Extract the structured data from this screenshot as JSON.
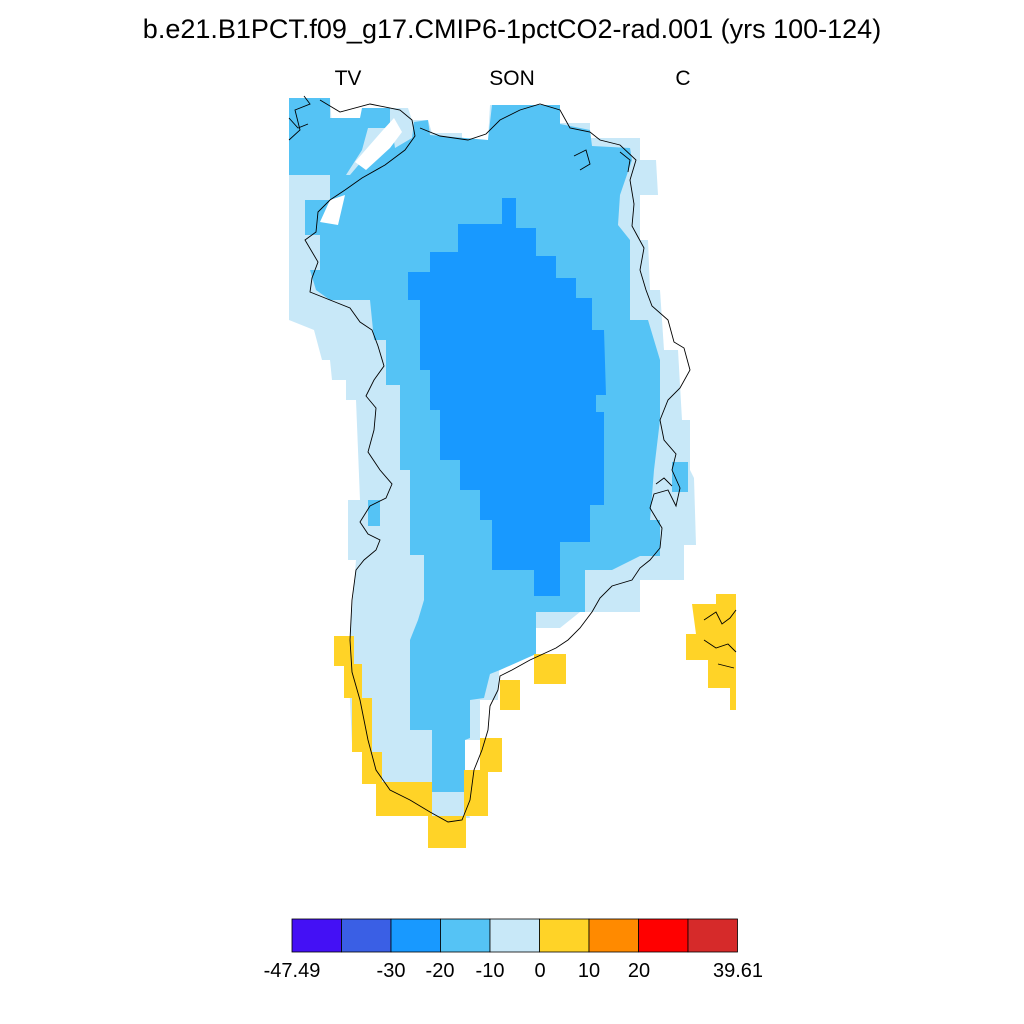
{
  "title": "b.e21.B1PCT.f09_g17.CMIP6-1pctCO2-rad.001 (yrs 100-124)",
  "subtitles": {
    "left": "TV",
    "center": "SON",
    "right": "C"
  },
  "colorbar": {
    "colors": [
      "#4410f5",
      "#3a5fe5",
      "#1899ff",
      "#55c3f5",
      "#c8e8f8",
      "#ffd327",
      "#ff8a00",
      "#ff0000",
      "#d62a2a"
    ],
    "labels": [
      "-47.49",
      "-30",
      "-20",
      "-10",
      "0",
      "10",
      "20",
      "39.61"
    ]
  },
  "map": {
    "region": "Greenland",
    "fill_colors": {
      "lt10_0": "#c8e8f8",
      "lt20_10": "#55c3f5",
      "lt30_20": "#1899ff",
      "gt0_10": "#ffd327"
    }
  }
}
